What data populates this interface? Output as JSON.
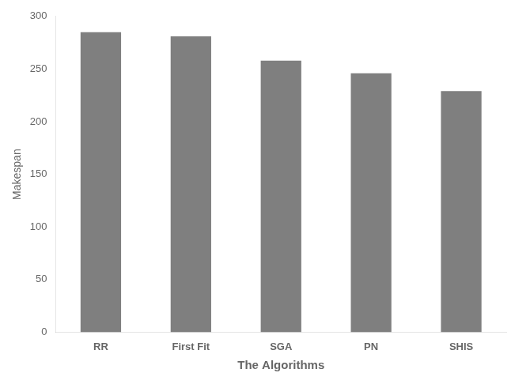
{
  "chart_data": {
    "type": "bar",
    "categories": [
      "RR",
      "First Fit",
      "SGA",
      "PN",
      "SHIS"
    ],
    "values": [
      285,
      281,
      258,
      246,
      229
    ],
    "color": "#7f7f7f",
    "xlabel": "The Algorithms",
    "ylabel": "Makespan",
    "ylim": [
      0,
      300
    ],
    "yticks": [
      0,
      50,
      100,
      150,
      200,
      250,
      300
    ],
    "grid": false
  }
}
